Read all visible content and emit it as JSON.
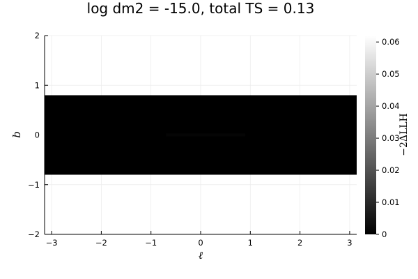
{
  "chart_data": {
    "type": "heatmap",
    "title": "log dm2 = -15.0, total TS = 0.13",
    "xlabel": "ℓ",
    "ylabel": "b",
    "xlim": [
      -3.14159,
      3.14159
    ],
    "ylim": [
      -2,
      2
    ],
    "xticks": [
      -3,
      -2,
      -1,
      0,
      1,
      2,
      3
    ],
    "xtick_labels": [
      "−3",
      "−2",
      "−1",
      "0",
      "1",
      "2",
      "3"
    ],
    "yticks": [
      -2,
      -1,
      0,
      1,
      2
    ],
    "ytick_labels": [
      "−2",
      "−1",
      "0",
      "1",
      "2"
    ],
    "grid": true,
    "filled_region": {
      "x": [
        -3.14159,
        3.14159
      ],
      "y": [
        -0.8,
        0.8
      ],
      "value": 0.0
    },
    "faint_feature": {
      "x": [
        -0.7,
        0.9
      ],
      "y": [
        -0.03,
        0.03
      ],
      "value": 0.002
    },
    "colorbar": {
      "label": "−2ΔLLH",
      "range": [
        0,
        0.062
      ],
      "ticks": [
        0,
        0.01,
        0.02,
        0.03,
        0.04,
        0.05,
        0.06
      ],
      "tick_labels": [
        "0",
        "0.01",
        "0.02",
        "0.03",
        "0.04",
        "0.05",
        "0.06"
      ],
      "colormap": [
        "#000000",
        "#ffffff"
      ]
    }
  }
}
